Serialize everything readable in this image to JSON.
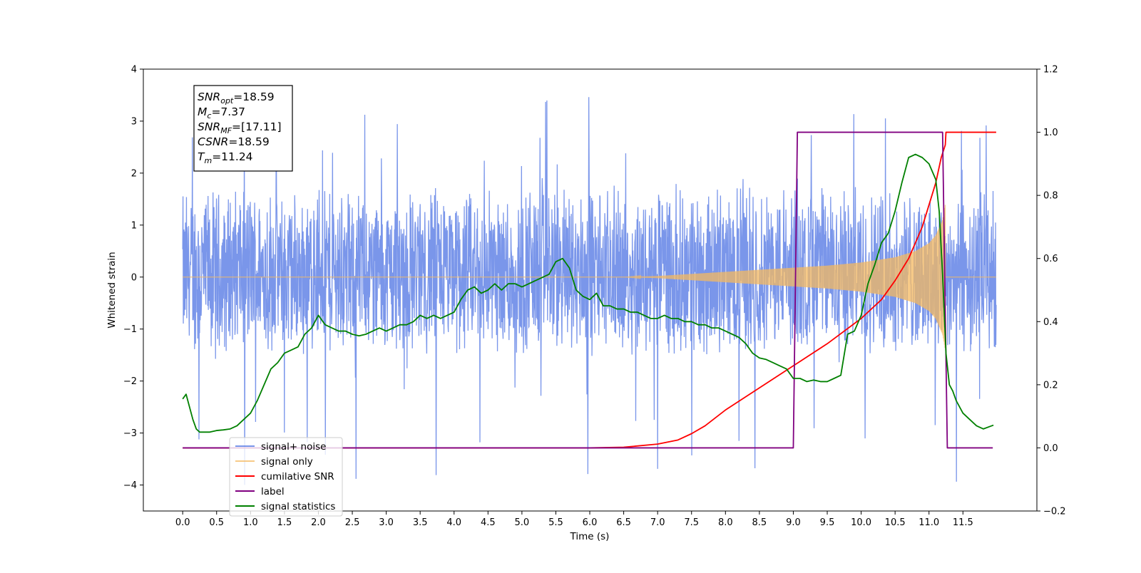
{
  "chart_data": {
    "type": "line",
    "xlabel": "Time (s)",
    "ylabel_left": "Whitened strain",
    "ylabel_right": "",
    "xlim": [
      -0.58,
      12.59
    ],
    "ylim_left": [
      -4.5,
      4.0
    ],
    "ylim_right": [
      -0.2,
      1.2
    ],
    "x_ticks": [
      0.0,
      0.5,
      1.0,
      1.5,
      2.0,
      2.5,
      3.0,
      3.5,
      4.0,
      4.5,
      5.0,
      5.5,
      6.0,
      6.5,
      7.0,
      7.5,
      8.0,
      8.5,
      9.0,
      9.5,
      10.0,
      10.5,
      11.0,
      11.5
    ],
    "x_tick_labels": [
      "0.0",
      "0.5",
      "1.0",
      "1.5",
      "2.0",
      "2.5",
      "3.0",
      "3.5",
      "4.0",
      "4.5",
      "5.0",
      "5.5",
      "6.0",
      "6.5",
      "7.0",
      "7.5",
      "8.0",
      "8.5",
      "9.0",
      "9.5",
      "10.0",
      "10.5",
      "11.0",
      "11.5"
    ],
    "y_left_ticks": [
      -4,
      -3,
      -2,
      -1,
      0,
      1,
      2,
      3,
      4
    ],
    "y_left_tick_labels": [
      "−4",
      "−3",
      "−2",
      "−1",
      "0",
      "1",
      "2",
      "3",
      "4"
    ],
    "y_right_ticks": [
      -0.2,
      0.0,
      0.2,
      0.4,
      0.6,
      0.8,
      1.0,
      1.2
    ],
    "y_right_tick_labels": [
      "−0.2",
      "0.0",
      "0.2",
      "0.4",
      "0.6",
      "0.8",
      "1.0",
      "1.2"
    ],
    "grid": false,
    "legend_position": "lower-left",
    "annotation_box": {
      "position": "top-left",
      "lines": [
        {
          "main": "SNR",
          "sub": "opt",
          "value": "=18.59"
        },
        {
          "main": "M",
          "sub": "c",
          "value": "=7.37"
        },
        {
          "main": "SNR",
          "sub": "MF",
          "value": "=[17.11]"
        },
        {
          "main": "CSNR",
          "sub": "",
          "value": "=18.59"
        },
        {
          "main": "T",
          "sub": "m",
          "value": "=11.24"
        }
      ]
    },
    "series": [
      {
        "name": "signal+ noise",
        "axis": "left",
        "color": "#4169e1",
        "opacity": 0.7,
        "style": "noise",
        "x_range": [
          0.0,
          11.99
        ],
        "envelope": {
          "typical_low": -1.6,
          "typical_high": 1.8,
          "max": 3.6,
          "min": -4.1
        }
      },
      {
        "name": "signal only",
        "axis": "left",
        "color": "#f4b860",
        "style": "chirp",
        "x_range": [
          0.0,
          11.99
        ],
        "merger_time": 11.24,
        "amplitude_points": {
          "x": [
            0.0,
            6.5,
            7.0,
            7.5,
            8.0,
            8.5,
            9.0,
            9.5,
            10.0,
            10.5,
            10.8,
            11.0,
            11.1,
            11.2,
            11.24
          ],
          "y": [
            0.0,
            0.0,
            0.02,
            0.06,
            0.1,
            0.14,
            0.18,
            0.22,
            0.28,
            0.38,
            0.5,
            0.65,
            0.8,
            1.1,
            1.4
          ]
        }
      },
      {
        "name": "cumilative SNR",
        "axis": "right",
        "color": "#ff0000",
        "x": [
          0.0,
          6.0,
          6.5,
          7.0,
          7.3,
          7.5,
          7.7,
          8.0,
          8.5,
          9.0,
          9.5,
          10.0,
          10.3,
          10.5,
          10.7,
          10.9,
          11.0,
          11.1,
          11.18,
          11.24,
          11.25,
          11.99
        ],
        "y": [
          0.0,
          0.0,
          0.002,
          0.012,
          0.025,
          0.045,
          0.07,
          0.12,
          0.19,
          0.26,
          0.33,
          0.41,
          0.47,
          0.53,
          0.6,
          0.7,
          0.77,
          0.84,
          0.92,
          0.96,
          1.0,
          1.0
        ]
      },
      {
        "name": "label",
        "axis": "right",
        "color": "#800080",
        "x": [
          0.0,
          9.0,
          9.06,
          11.2,
          11.27,
          11.94
        ],
        "y": [
          0.0,
          0.0,
          1.0,
          1.0,
          0.0,
          0.0
        ]
      },
      {
        "name": "signal statistics",
        "axis": "right",
        "color": "#008000",
        "x": [
          0.0,
          0.05,
          0.1,
          0.15,
          0.2,
          0.25,
          0.3,
          0.4,
          0.5,
          0.6,
          0.7,
          0.8,
          0.9,
          1.0,
          1.1,
          1.2,
          1.3,
          1.4,
          1.5,
          1.6,
          1.7,
          1.8,
          1.9,
          2.0,
          2.1,
          2.2,
          2.3,
          2.4,
          2.5,
          2.6,
          2.7,
          2.8,
          2.9,
          3.0,
          3.1,
          3.2,
          3.3,
          3.4,
          3.5,
          3.6,
          3.7,
          3.8,
          3.9,
          4.0,
          4.1,
          4.2,
          4.3,
          4.4,
          4.5,
          4.6,
          4.7,
          4.8,
          4.9,
          5.0,
          5.1,
          5.2,
          5.3,
          5.4,
          5.5,
          5.6,
          5.7,
          5.8,
          5.9,
          6.0,
          6.1,
          6.2,
          6.3,
          6.4,
          6.5,
          6.6,
          6.7,
          6.8,
          6.9,
          7.0,
          7.1,
          7.2,
          7.3,
          7.4,
          7.5,
          7.6,
          7.7,
          7.8,
          7.9,
          8.0,
          8.1,
          8.2,
          8.3,
          8.4,
          8.5,
          8.6,
          8.7,
          8.8,
          8.9,
          9.0,
          9.1,
          9.2,
          9.3,
          9.4,
          9.5,
          9.6,
          9.7,
          9.8,
          9.9,
          10.0,
          10.1,
          10.2,
          10.3,
          10.4,
          10.5,
          10.6,
          10.7,
          10.8,
          10.9,
          11.0,
          11.1,
          11.15,
          11.2,
          11.25,
          11.3,
          11.35,
          11.4,
          11.5,
          11.6,
          11.7,
          11.8,
          11.9,
          11.95
        ],
        "y": [
          0.155,
          0.17,
          0.13,
          0.09,
          0.06,
          0.05,
          0.05,
          0.05,
          0.055,
          0.057,
          0.06,
          0.07,
          0.09,
          0.11,
          0.15,
          0.2,
          0.25,
          0.27,
          0.3,
          0.31,
          0.32,
          0.36,
          0.38,
          0.42,
          0.39,
          0.38,
          0.37,
          0.37,
          0.36,
          0.355,
          0.36,
          0.37,
          0.38,
          0.37,
          0.38,
          0.39,
          0.39,
          0.4,
          0.42,
          0.41,
          0.42,
          0.41,
          0.42,
          0.43,
          0.47,
          0.5,
          0.51,
          0.49,
          0.5,
          0.52,
          0.5,
          0.52,
          0.52,
          0.51,
          0.52,
          0.53,
          0.54,
          0.55,
          0.59,
          0.6,
          0.57,
          0.5,
          0.48,
          0.47,
          0.49,
          0.45,
          0.45,
          0.44,
          0.44,
          0.43,
          0.43,
          0.42,
          0.41,
          0.41,
          0.42,
          0.41,
          0.41,
          0.4,
          0.4,
          0.39,
          0.39,
          0.38,
          0.38,
          0.37,
          0.36,
          0.35,
          0.33,
          0.3,
          0.285,
          0.28,
          0.27,
          0.26,
          0.25,
          0.22,
          0.22,
          0.21,
          0.215,
          0.21,
          0.21,
          0.22,
          0.23,
          0.36,
          0.37,
          0.42,
          0.52,
          0.58,
          0.65,
          0.68,
          0.75,
          0.84,
          0.92,
          0.93,
          0.92,
          0.9,
          0.85,
          0.75,
          0.55,
          0.3,
          0.2,
          0.18,
          0.15,
          0.11,
          0.09,
          0.07,
          0.06,
          0.068,
          0.072
        ]
      }
    ]
  }
}
